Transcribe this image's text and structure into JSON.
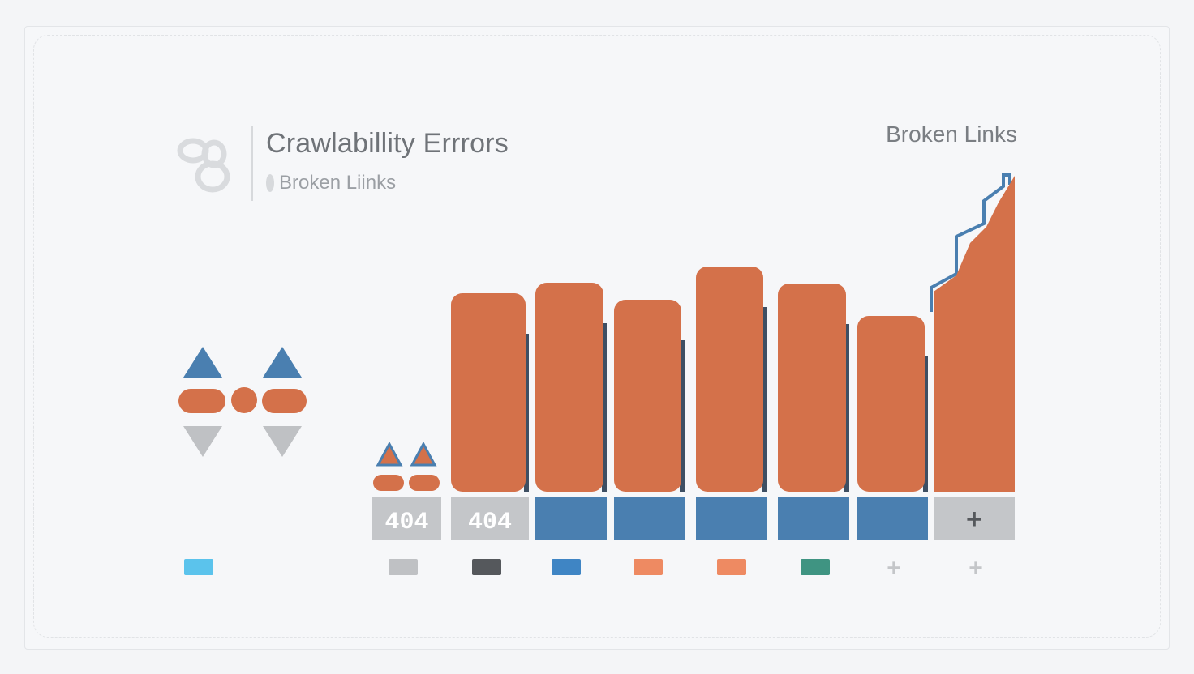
{
  "header": {
    "title": "Crawlabillity Errrors",
    "subtitle": "Broken Liinks",
    "corner_label": "Broken Links"
  },
  "colors": {
    "bar": "#d4714a",
    "bar_side": "#3e4f63",
    "label_blue": "#4a7fb0",
    "label_gray": "#c4c6c9",
    "arrow_up": "#4a7fb0",
    "arrow_down": "#bfc1c4"
  },
  "chart_data": {
    "type": "bar",
    "title": "Crawlabillity Errrors",
    "categories": [
      "404",
      "404",
      "",
      "",
      "",
      "",
      "",
      "+"
    ],
    "values": [
      0,
      245,
      258,
      237,
      278,
      257,
      217,
      390
    ],
    "category_style": [
      "gray",
      "gray",
      "blue",
      "blue",
      "blue",
      "blue",
      "blue",
      "gray"
    ],
    "legend": [
      {
        "swatch": "#5bc3ec",
        "label": ""
      },
      {
        "swatch": "#bfc1c4",
        "label": ""
      },
      {
        "swatch": "#55585c",
        "label": ""
      },
      {
        "swatch": "#3f85c4",
        "label": ""
      },
      {
        "swatch": "#ee8a62",
        "label": ""
      },
      {
        "swatch": "#ee8a62",
        "label": ""
      },
      {
        "swatch": "#3f9482",
        "label": ""
      },
      {
        "swatch": "plus",
        "label": ""
      },
      {
        "swatch": "plus",
        "label": ""
      }
    ],
    "legend_placement": "bottom",
    "grid": false,
    "ylim": [
      0,
      390
    ]
  }
}
